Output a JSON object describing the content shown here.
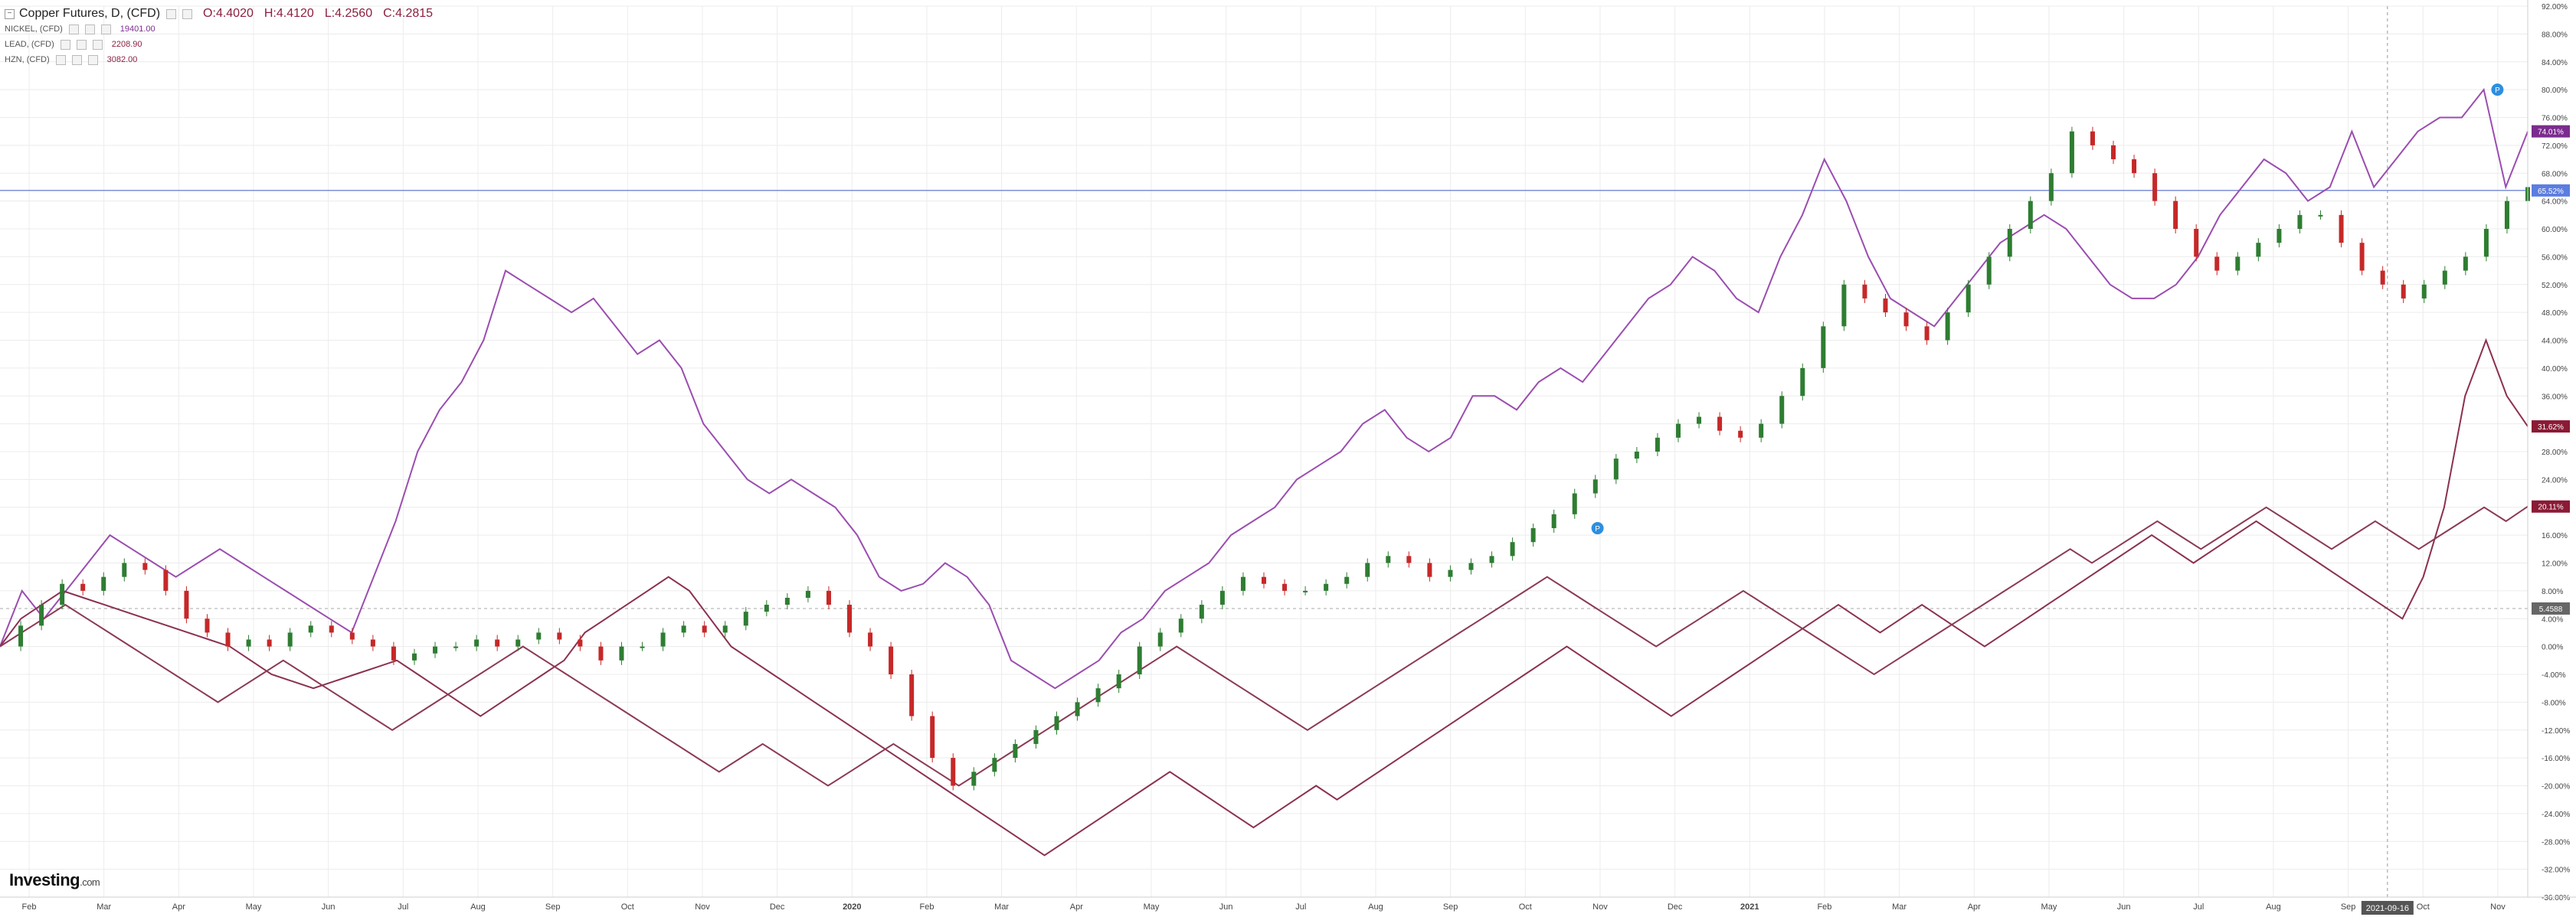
{
  "legend": {
    "main": {
      "name": "Copper Futures, D, (CFD)",
      "open": "O:4.4020",
      "high": "H:4.4120",
      "low": "L:4.2560",
      "close": "C:4.2815"
    },
    "overlays": [
      {
        "name": "NICKEL, (CFD)",
        "value": "19401.00",
        "color": "#7b2c8e"
      },
      {
        "name": "LEAD, (CFD)",
        "value": "2208.90",
        "color": "#8b2040"
      },
      {
        "name": "HZN, (CFD)",
        "value": "3082.00",
        "color": "#8b2040"
      }
    ]
  },
  "logo": {
    "name": "Investing",
    "domain": ".com"
  },
  "colors": {
    "nickel": "#9b4db0",
    "lead": "#8b3050",
    "zinc": "#8b3a55",
    "up": "#2e7d32",
    "down": "#c62828",
    "hline": "#7d8fd9",
    "grid": "#ececec"
  },
  "chart_data": {
    "type": "line",
    "y_axis": {
      "range": [
        -36,
        92
      ],
      "tick_labels": [
        "92.00%",
        "88.00%",
        "84.00%",
        "80.00%",
        "76.00%",
        "72.00%",
        "68.00%",
        "64.00%",
        "60.00%",
        "56.00%",
        "52.00%",
        "48.00%",
        "44.00%",
        "40.00%",
        "36.00%",
        "32.00%",
        "28.00%",
        "24.00%",
        "20.00%",
        "16.00%",
        "12.00%",
        "8.00%",
        "4.00%",
        "0.00%",
        "-4.00%",
        "-8.00%",
        "-12.00%",
        "-16.00%",
        "-20.00%",
        "-24.00%",
        "-28.00%",
        "-32.00%",
        "-36.00%"
      ]
    },
    "x_axis": {
      "tick_labels": [
        "Feb",
        "Mar",
        "Apr",
        "May",
        "Jun",
        "Jul",
        "Aug",
        "Sep",
        "Oct",
        "Nov",
        "Dec",
        "2020",
        "Feb",
        "Mar",
        "Apr",
        "May",
        "Jun",
        "Jul",
        "Aug",
        "Sep",
        "Oct",
        "Nov",
        "Dec",
        "2021",
        "Feb",
        "Mar",
        "Apr",
        "May",
        "Jun",
        "Jul",
        "Aug",
        "Sep",
        "Oct",
        "Nov"
      ],
      "bold_labels": [
        "2020",
        "2021"
      ],
      "cursor_label": "2021-09-16"
    },
    "horizontal_line": 65.52,
    "price_labels": [
      {
        "text": "74.01%",
        "value": 74.01,
        "color": "#7b2c8e"
      },
      {
        "text": "65.52%",
        "value": 65.52,
        "color": "#5b7de0"
      },
      {
        "text": "31.62%",
        "value": 31.62,
        "color": "#8b1a35"
      },
      {
        "text": "20.11%",
        "value": 20.11,
        "color": "#8b1a35"
      },
      {
        "text": "5.4588",
        "value": 5.4588,
        "color": "#ffffff"
      }
    ],
    "series": [
      {
        "key": "nickel",
        "values": [
          0,
          8,
          4,
          8,
          12,
          16,
          14,
          12,
          10,
          12,
          14,
          12,
          10,
          8,
          6,
          4,
          2,
          10,
          18,
          28,
          34,
          38,
          44,
          54,
          52,
          50,
          48,
          50,
          46,
          42,
          44,
          40,
          32,
          28,
          24,
          22,
          24,
          22,
          20,
          16,
          10,
          8,
          9,
          12,
          10,
          6,
          -2,
          -4,
          -6,
          -4,
          -2,
          2,
          4,
          8,
          10,
          12,
          16,
          18,
          20,
          24,
          26,
          28,
          32,
          34,
          30,
          28,
          30,
          36,
          36,
          34,
          38,
          40,
          38,
          42,
          46,
          50,
          52,
          56,
          54,
          50,
          48,
          56,
          62,
          70,
          64,
          56,
          50,
          48,
          46,
          50,
          54,
          58,
          60,
          62,
          60,
          56,
          52,
          50,
          50,
          52,
          56,
          62,
          66,
          70,
          68,
          64,
          66,
          74,
          66,
          70,
          74,
          76,
          76,
          80,
          66,
          74
        ]
      },
      {
        "key": "copper",
        "values": [
          0,
          3,
          6,
          9,
          8,
          10,
          12,
          11,
          8,
          4,
          2,
          0,
          1,
          0,
          2,
          3,
          2,
          1,
          0,
          -2,
          -1,
          0,
          0,
          1,
          0,
          1,
          2,
          1,
          0,
          -2,
          0,
          0,
          2,
          3,
          2,
          3,
          5,
          6,
          7,
          8,
          6,
          2,
          0,
          -4,
          -10,
          -16,
          -20,
          -18,
          -16,
          -14,
          -12,
          -10,
          -8,
          -6,
          -4,
          0,
          2,
          4,
          6,
          8,
          10,
          9,
          8,
          8,
          9,
          10,
          12,
          13,
          12,
          10,
          11,
          12,
          13,
          15,
          17,
          19,
          22,
          24,
          27,
          28,
          30,
          32,
          33,
          31,
          30,
          32,
          36,
          40,
          46,
          52,
          50,
          48,
          46,
          44,
          48,
          52,
          56,
          60,
          64,
          68,
          74,
          72,
          70,
          68,
          64,
          60,
          56,
          54,
          56,
          58,
          60,
          62,
          62,
          58,
          54,
          52,
          50,
          52,
          54,
          56,
          60,
          64,
          66
        ]
      },
      {
        "key": "lead",
        "values": [
          0,
          4,
          6,
          8,
          7,
          6,
          5,
          4,
          3,
          2,
          1,
          0,
          -2,
          -4,
          -5,
          -6,
          -5,
          -4,
          -3,
          -2,
          -4,
          -6,
          -8,
          -10,
          -8,
          -6,
          -4,
          -2,
          2,
          4,
          6,
          8,
          10,
          8,
          4,
          0,
          -2,
          -4,
          -6,
          -8,
          -10,
          -12,
          -14,
          -16,
          -18,
          -20,
          -22,
          -24,
          -26,
          -28,
          -30,
          -28,
          -26,
          -24,
          -22,
          -20,
          -18,
          -20,
          -22,
          -24,
          -26,
          -24,
          -22,
          -20,
          -22,
          -20,
          -18,
          -16,
          -14,
          -12,
          -10,
          -8,
          -6,
          -4,
          -2,
          0,
          -2,
          -4,
          -6,
          -8,
          -10,
          -8,
          -6,
          -4,
          -2,
          0,
          2,
          4,
          6,
          4,
          2,
          4,
          6,
          4,
          2,
          0,
          2,
          4,
          6,
          8,
          10,
          12,
          14,
          16,
          14,
          12,
          14,
          16,
          18,
          16,
          14,
          12,
          10,
          8,
          6,
          4,
          10,
          20,
          36,
          44,
          36,
          31.62
        ]
      },
      {
        "key": "zinc",
        "values": [
          0,
          2,
          4,
          6,
          4,
          2,
          0,
          -2,
          -4,
          -6,
          -8,
          -6,
          -4,
          -2,
          -4,
          -6,
          -8,
          -10,
          -12,
          -10,
          -8,
          -6,
          -4,
          -2,
          0,
          -2,
          -4,
          -6,
          -8,
          -10,
          -12,
          -14,
          -16,
          -18,
          -16,
          -14,
          -16,
          -18,
          -20,
          -18,
          -16,
          -14,
          -16,
          -18,
          -20,
          -18,
          -16,
          -14,
          -12,
          -10,
          -8,
          -6,
          -4,
          -2,
          0,
          -2,
          -4,
          -6,
          -8,
          -10,
          -12,
          -10,
          -8,
          -6,
          -4,
          -2,
          0,
          2,
          4,
          6,
          8,
          10,
          8,
          6,
          4,
          2,
          0,
          2,
          4,
          6,
          8,
          6,
          4,
          2,
          0,
          -2,
          -4,
          -2,
          0,
          2,
          4,
          6,
          8,
          10,
          12,
          14,
          12,
          14,
          16,
          18,
          16,
          14,
          16,
          18,
          20,
          18,
          16,
          14,
          16,
          18,
          16,
          14,
          16,
          18,
          20,
          18,
          20.11
        ]
      }
    ],
    "markers": [
      {
        "series": "copper",
        "x_fraction": 0.632,
        "value": 17,
        "label": "P"
      },
      {
        "series": "copper",
        "x_fraction": 0.988,
        "value": 80,
        "label": "P"
      }
    ]
  }
}
